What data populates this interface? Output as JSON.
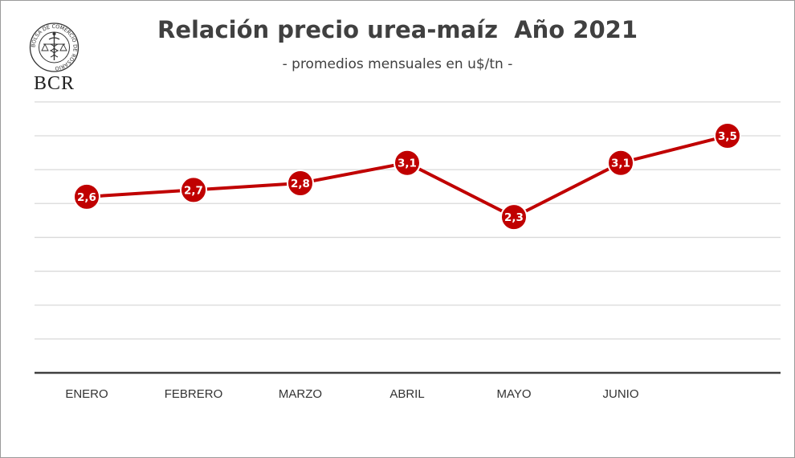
{
  "title": "Relación precio urea-maíz  Año 2021",
  "subtitle": "- promedios mensuales en u$/tn -",
  "logo": {
    "text": "BCR",
    "ring_text": "BOLSA DE COMERCIO DE ROSARIO"
  },
  "chart_data": {
    "type": "line",
    "title": "Relación precio urea-maíz  Año 2021",
    "subtitle": "- promedios mensuales en u$/tn -",
    "categories": [
      "ENERO",
      "FEBRERO",
      "MARZO",
      "ABRIL",
      "MAYO",
      "JUNIO",
      ""
    ],
    "series": [
      {
        "values": [
          2.6,
          2.7,
          2.8,
          3.1,
          2.3,
          3.1,
          3.5
        ],
        "labels": [
          "2,6",
          "2,7",
          "2,8",
          "3,1",
          "2,3",
          "3,1",
          "3,5"
        ]
      }
    ],
    "ylim": [
      0,
      4.2
    ],
    "grid": true,
    "y_tick_labels_shown": false,
    "legend": "none",
    "colors": {
      "line": "#c00000",
      "marker": "#c00000",
      "marker_border": "#ffffff",
      "grid": "#d9d9d9",
      "axis": "#404040"
    }
  }
}
